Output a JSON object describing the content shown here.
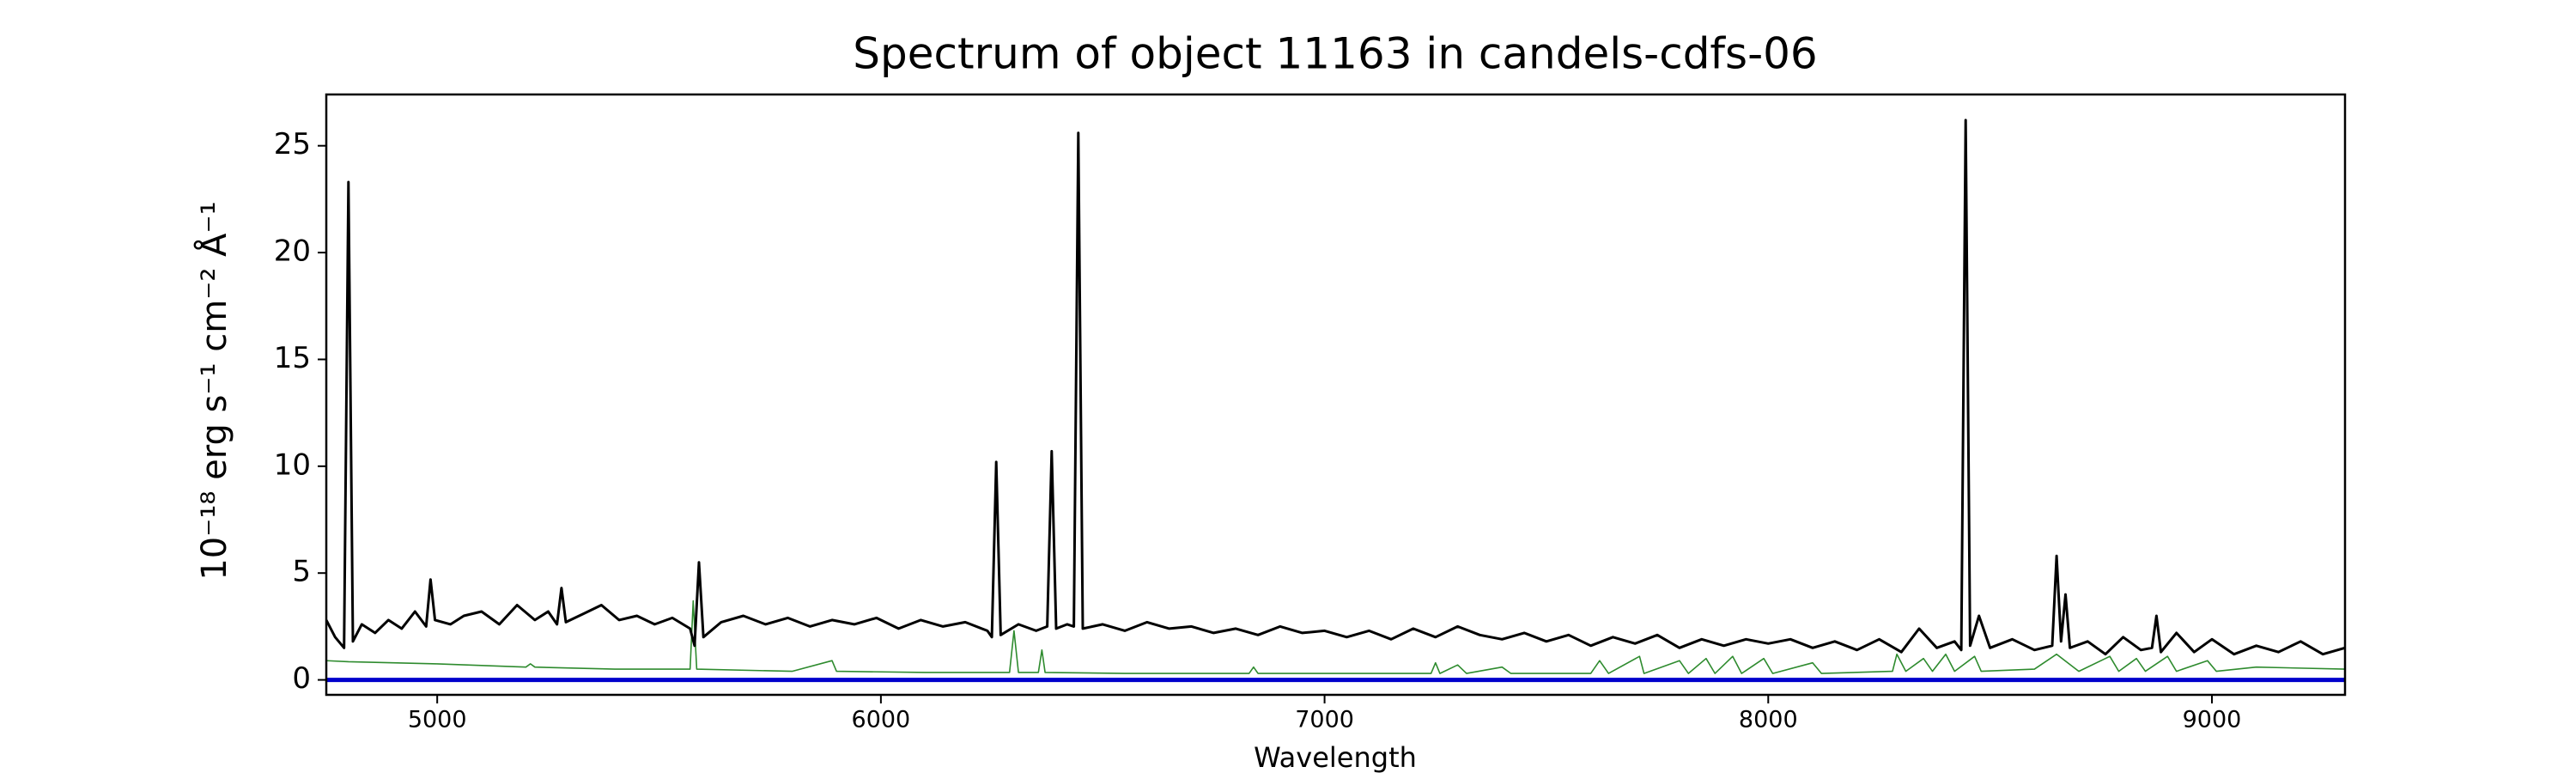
{
  "chart_data": {
    "type": "line",
    "title": "Spectrum of object 11163 in candels-cdfs-06",
    "x_label": "Wavelength",
    "y_label": "10⁻¹⁸ erg s⁻¹ cm⁻² Å⁻¹",
    "xlim": [
      4750,
      9300
    ],
    "ylim": [
      -0.7,
      27.4
    ],
    "xticks": [
      5000,
      6000,
      7000,
      8000,
      9000
    ],
    "yticks": [
      0,
      5,
      10,
      15,
      20,
      25
    ],
    "grid": false,
    "series": [
      {
        "color": "#2e8b2e",
        "x": [
          4750,
          4800,
          5000,
          5200,
          5210,
          5220,
          5400,
          5570,
          5577,
          5585,
          5800,
          5890,
          5900,
          6100,
          6290,
          6300,
          6310,
          6355,
          6363,
          6370,
          6550,
          6830,
          6840,
          6850,
          7000,
          7240,
          7250,
          7260,
          7300,
          7320,
          7400,
          7420,
          7600,
          7620,
          7640,
          7710,
          7720,
          7800,
          7820,
          7860,
          7880,
          7920,
          7940,
          7990,
          8010,
          8100,
          8120,
          8280,
          8290,
          8310,
          8350,
          8370,
          8400,
          8420,
          8465,
          8480,
          8600,
          8650,
          8700,
          8770,
          8790,
          8830,
          8850,
          8900,
          8920,
          8990,
          9010,
          9100,
          9300
        ],
        "values": [
          0.9,
          0.85,
          0.75,
          0.6,
          0.75,
          0.6,
          0.5,
          0.5,
          3.7,
          0.5,
          0.4,
          0.9,
          0.4,
          0.35,
          0.35,
          2.3,
          0.35,
          0.35,
          1.4,
          0.35,
          0.3,
          0.3,
          0.6,
          0.3,
          0.3,
          0.3,
          0.8,
          0.3,
          0.7,
          0.3,
          0.6,
          0.3,
          0.3,
          0.9,
          0.3,
          1.1,
          0.3,
          0.9,
          0.3,
          1.0,
          0.3,
          1.1,
          0.3,
          1.0,
          0.3,
          0.8,
          0.3,
          0.4,
          1.2,
          0.4,
          1.0,
          0.4,
          1.2,
          0.4,
          1.1,
          0.4,
          0.5,
          1.2,
          0.4,
          1.1,
          0.4,
          1.0,
          0.4,
          1.1,
          0.4,
          0.9,
          0.4,
          0.6,
          0.5
        ]
      },
      {
        "color": "#000000",
        "x": [
          4750,
          4770,
          4790,
          4800,
          4810,
          4830,
          4860,
          4890,
          4920,
          4950,
          4975,
          4985,
          4995,
          5030,
          5060,
          5100,
          5140,
          5180,
          5220,
          5250,
          5270,
          5280,
          5290,
          5330,
          5370,
          5410,
          5450,
          5490,
          5530,
          5570,
          5580,
          5590,
          5600,
          5640,
          5690,
          5740,
          5790,
          5840,
          5890,
          5940,
          5990,
          6040,
          6090,
          6140,
          6190,
          6240,
          6250,
          6260,
          6270,
          6310,
          6350,
          6375,
          6385,
          6395,
          6420,
          6435,
          6445,
          6455,
          6500,
          6550,
          6600,
          6650,
          6700,
          6750,
          6800,
          6850,
          6900,
          6950,
          7000,
          7050,
          7100,
          7150,
          7200,
          7250,
          7300,
          7350,
          7400,
          7450,
          7500,
          7550,
          7600,
          7650,
          7700,
          7750,
          7800,
          7850,
          7900,
          7950,
          8000,
          8050,
          8100,
          8150,
          8200,
          8250,
          8300,
          8340,
          8380,
          8420,
          8435,
          8445,
          8455,
          8475,
          8500,
          8550,
          8600,
          8640,
          8650,
          8660,
          8670,
          8680,
          8720,
          8760,
          8800,
          8840,
          8865,
          8875,
          8885,
          8920,
          8960,
          9000,
          9050,
          9100,
          9150,
          9200,
          9250,
          9300
        ],
        "values": [
          2.8,
          2.0,
          1.5,
          23.3,
          1.8,
          2.6,
          2.2,
          2.8,
          2.4,
          3.2,
          2.5,
          4.7,
          2.8,
          2.6,
          3.0,
          3.2,
          2.6,
          3.5,
          2.8,
          3.2,
          2.6,
          4.3,
          2.7,
          3.1,
          3.5,
          2.8,
          3.0,
          2.6,
          2.9,
          2.4,
          1.6,
          5.5,
          2.0,
          2.7,
          3.0,
          2.6,
          2.9,
          2.5,
          2.8,
          2.6,
          2.9,
          2.4,
          2.8,
          2.5,
          2.7,
          2.3,
          2.0,
          10.2,
          2.1,
          2.6,
          2.3,
          2.5,
          10.7,
          2.4,
          2.6,
          2.5,
          25.6,
          2.4,
          2.6,
          2.3,
          2.7,
          2.4,
          2.5,
          2.2,
          2.4,
          2.1,
          2.5,
          2.2,
          2.3,
          2.0,
          2.3,
          1.9,
          2.4,
          2.0,
          2.5,
          2.1,
          1.9,
          2.2,
          1.8,
          2.1,
          1.6,
          2.0,
          1.7,
          2.1,
          1.5,
          1.9,
          1.6,
          1.9,
          1.7,
          1.9,
          1.5,
          1.8,
          1.4,
          1.9,
          1.3,
          2.4,
          1.5,
          1.8,
          1.4,
          26.2,
          1.6,
          3.0,
          1.5,
          1.9,
          1.4,
          1.6,
          5.8,
          1.8,
          4.0,
          1.5,
          1.8,
          1.2,
          2.0,
          1.4,
          1.5,
          3.0,
          1.3,
          2.2,
          1.3,
          1.9,
          1.2,
          1.6,
          1.3,
          1.8,
          1.2,
          1.5
        ]
      },
      {
        "color": "#0000cc",
        "x": [
          4750,
          9300
        ],
        "values": [
          0,
          0
        ]
      }
    ]
  }
}
